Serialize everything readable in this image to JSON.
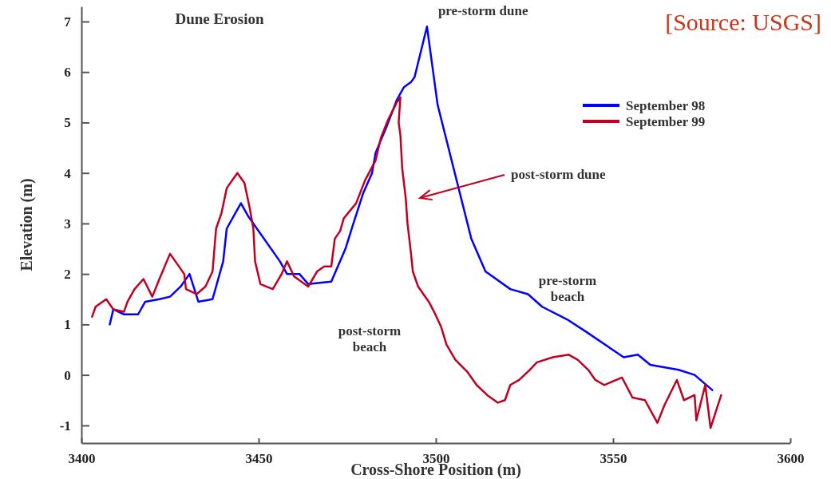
{
  "chart_data": {
    "type": "line",
    "title": "Dune Erosion",
    "xlabel": "Cross-Shore Position (m)",
    "ylabel": "Elevation (m)",
    "xlim": [
      3400,
      3600
    ],
    "xticks": [
      3400,
      3450,
      3500,
      3550,
      3600
    ],
    "ylim": [
      -1.35,
      7.3
    ],
    "yticks": [
      -1,
      0,
      1,
      2,
      3,
      4,
      5,
      6,
      7
    ],
    "grid": false,
    "legend": "top right",
    "line_style": "solid",
    "series": [
      {
        "name": "September 98",
        "color": "#0000ff",
        "x": [
          3408,
          3409,
          3412,
          3416,
          3418,
          3422,
          3425,
          3428,
          3430.5,
          3433,
          3437,
          3440,
          3441,
          3445,
          3447,
          3456,
          3458,
          3461.5,
          3464,
          3470.5,
          3474.5,
          3476.5,
          3479.5,
          3482,
          3483,
          3486,
          3489,
          3491,
          3493,
          3494,
          3497.5,
          3500.5,
          3510,
          3514,
          3521,
          3526,
          3530,
          3537,
          3542.5,
          3553,
          3557,
          3560.5,
          3568.5,
          3573,
          3578
        ],
        "values": [
          1.0,
          1.3,
          1.2,
          1.2,
          1.45,
          1.5,
          1.55,
          1.75,
          2.0,
          1.45,
          1.5,
          2.25,
          2.9,
          3.4,
          3.15,
          2.25,
          2.0,
          2.0,
          1.8,
          1.85,
          2.5,
          2.95,
          3.6,
          4.0,
          4.4,
          4.9,
          5.45,
          5.7,
          5.8,
          5.9,
          6.9,
          5.35,
          2.7,
          2.05,
          1.7,
          1.6,
          1.35,
          1.1,
          0.85,
          0.35,
          0.4,
          0.2,
          0.1,
          0.0,
          -0.3
        ]
      },
      {
        "name": "September 99",
        "color": "#c00020",
        "x": [
          3403,
          3404,
          3407,
          3409,
          3412,
          3413,
          3415,
          3417.5,
          3420,
          3422,
          3425,
          3429,
          3429.5,
          3432.5,
          3435,
          3437,
          3438,
          3439.5,
          3441,
          3444,
          3446,
          3447.5,
          3448.5,
          3449,
          3450.5,
          3454,
          3456.5,
          3458,
          3460,
          3464,
          3466.5,
          3468.5,
          3470.5,
          3471.5,
          3473,
          3474,
          3477.5,
          3480,
          3483,
          3484.5,
          3486.5,
          3489,
          3490,
          3489.5,
          3490,
          3490.5,
          3491.5,
          3492,
          3493,
          3493.5,
          3495,
          3498,
          3499.5,
          3501.5,
          3503,
          3505.5,
          3509,
          3511.5,
          3514.5,
          3517.5,
          3519.5,
          3521,
          3523.5,
          3526.5,
          3528.5,
          3533,
          3537.5,
          3540,
          3543,
          3545,
          3547.5,
          3552.5,
          3555.5,
          3559,
          3562.5,
          3564.5,
          3568,
          3570,
          3573,
          3573.5,
          3576,
          3577.5,
          3580.5
        ],
        "values": [
          1.15,
          1.35,
          1.5,
          1.3,
          1.25,
          1.45,
          1.7,
          1.9,
          1.55,
          1.9,
          2.4,
          2.0,
          1.7,
          1.6,
          1.75,
          2.05,
          2.9,
          3.2,
          3.7,
          4.0,
          3.8,
          3.3,
          2.9,
          2.25,
          1.8,
          1.7,
          2.0,
          2.25,
          1.95,
          1.75,
          2.05,
          2.15,
          2.15,
          2.7,
          2.85,
          3.1,
          3.4,
          3.85,
          4.25,
          4.7,
          5.05,
          5.4,
          5.5,
          5.0,
          4.75,
          4.1,
          3.5,
          3.0,
          2.4,
          2.05,
          1.75,
          1.45,
          1.25,
          0.95,
          0.6,
          0.3,
          0.05,
          -0.2,
          -0.4,
          -0.55,
          -0.5,
          -0.2,
          -0.1,
          0.1,
          0.25,
          0.35,
          0.4,
          0.3,
          0.1,
          -0.1,
          -0.2,
          -0.05,
          -0.45,
          -0.5,
          -0.95,
          -0.6,
          -0.1,
          -0.5,
          -0.4,
          -0.9,
          -0.2,
          -1.05,
          -0.4
        ]
      }
    ],
    "annotations": [
      {
        "text": "pre-storm dune",
        "x": 3497.5,
        "y": 6.9
      },
      "post-storm dune",
      "pre-storm beach",
      "post-storm beach",
      "[Source: USGS]"
    ]
  }
}
